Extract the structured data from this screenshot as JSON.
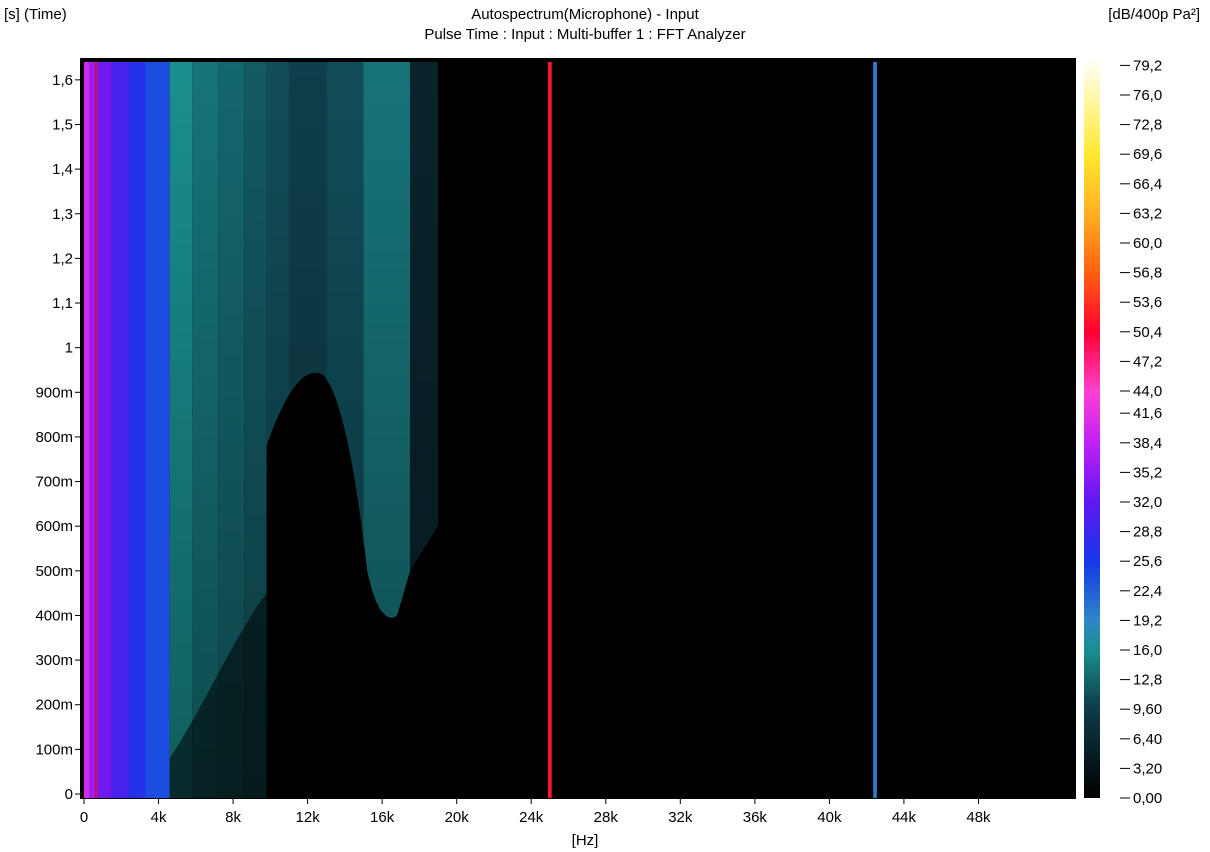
{
  "chart_data": {
    "type": "heatmap",
    "title": "Autospectrum(Microphone) - Input",
    "subtitle": "Pulse Time : Input : Multi-buffer 1 : FFT Analyzer",
    "xlabel": "[Hz]",
    "ylabel": "[s] (Time)",
    "colorbar_label": "[dB/400p Pa²]",
    "xlim": [
      0,
      52000
    ],
    "ylim": [
      0,
      1.64
    ],
    "x_ticks": [
      {
        "value": 0,
        "label": "0"
      },
      {
        "value": 4000,
        "label": "4k"
      },
      {
        "value": 8000,
        "label": "8k"
      },
      {
        "value": 12000,
        "label": "12k"
      },
      {
        "value": 16000,
        "label": "16k"
      },
      {
        "value": 20000,
        "label": "20k"
      },
      {
        "value": 24000,
        "label": "24k"
      },
      {
        "value": 28000,
        "label": "28k"
      },
      {
        "value": 32000,
        "label": "32k"
      },
      {
        "value": 36000,
        "label": "36k"
      },
      {
        "value": 40000,
        "label": "40k"
      },
      {
        "value": 44000,
        "label": "44k"
      },
      {
        "value": 48000,
        "label": "48k"
      }
    ],
    "y_ticks": [
      {
        "value": 0,
        "label": "0"
      },
      {
        "value": 0.1,
        "label": "100m"
      },
      {
        "value": 0.2,
        "label": "200m"
      },
      {
        "value": 0.3,
        "label": "300m"
      },
      {
        "value": 0.4,
        "label": "400m"
      },
      {
        "value": 0.5,
        "label": "500m"
      },
      {
        "value": 0.6,
        "label": "600m"
      },
      {
        "value": 0.7,
        "label": "700m"
      },
      {
        "value": 0.8,
        "label": "800m"
      },
      {
        "value": 0.9,
        "label": "900m"
      },
      {
        "value": 1.0,
        "label": "1"
      },
      {
        "value": 1.1,
        "label": "1,1"
      },
      {
        "value": 1.2,
        "label": "1,2"
      },
      {
        "value": 1.3,
        "label": "1,3"
      },
      {
        "value": 1.4,
        "label": "1,4"
      },
      {
        "value": 1.5,
        "label": "1,5"
      },
      {
        "value": 1.6,
        "label": "1,6"
      }
    ],
    "colorbar": {
      "range": [
        0,
        80
      ],
      "ticks": [
        "79,2",
        "76,0",
        "72,8",
        "69,6",
        "66,4",
        "63,2",
        "60,0",
        "56,8",
        "53,6",
        "50,4",
        "47,2",
        "44,0",
        "41,6",
        "38,4",
        "35,2",
        "32,0",
        "28,8",
        "25,6",
        "22,4",
        "19,2",
        "16,0",
        "12,8",
        "9,60",
        "6,40",
        "3,20",
        "0,00"
      ],
      "tick_values": [
        79.2,
        76.0,
        72.8,
        69.6,
        66.4,
        63.2,
        60.0,
        56.8,
        53.6,
        50.4,
        47.2,
        44.0,
        41.6,
        38.4,
        35.2,
        32.0,
        28.8,
        25.6,
        22.4,
        19.2,
        16.0,
        12.8,
        9.6,
        6.4,
        3.2,
        0.0
      ],
      "stops": [
        {
          "value": 0,
          "color": "#000000"
        },
        {
          "value": 9.6,
          "color": "#0e3a48"
        },
        {
          "value": 16,
          "color": "#1a8f8f"
        },
        {
          "value": 19.2,
          "color": "#2f86c8"
        },
        {
          "value": 25.6,
          "color": "#1538e8"
        },
        {
          "value": 32,
          "color": "#6018f0"
        },
        {
          "value": 38.4,
          "color": "#c020f8"
        },
        {
          "value": 44,
          "color": "#ff40d0"
        },
        {
          "value": 50.4,
          "color": "#ff0030"
        },
        {
          "value": 56.8,
          "color": "#ff6010"
        },
        {
          "value": 63.2,
          "color": "#ffb020"
        },
        {
          "value": 69.6,
          "color": "#ffe830"
        },
        {
          "value": 76,
          "color": "#fff8b0"
        },
        {
          "value": 80,
          "color": "#ffffff"
        }
      ]
    },
    "bands": [
      {
        "f0": 0,
        "f1": 300,
        "t_top": 1.64,
        "level": 40
      },
      {
        "f0": 300,
        "f1": 600,
        "t_top": 1.64,
        "level": 36
      },
      {
        "f0": 600,
        "f1": 700,
        "t_top": 1.64,
        "level": 50
      },
      {
        "f0": 700,
        "f1": 1500,
        "t_top": 1.64,
        "level": 33
      },
      {
        "f0": 1500,
        "f1": 2400,
        "t_top": 1.64,
        "level": 30
      },
      {
        "f0": 2400,
        "f1": 3300,
        "t_top": 1.64,
        "level": 27
      },
      {
        "f0": 3300,
        "f1": 4600,
        "t_top": 1.64,
        "level": 24
      },
      {
        "f0": 4600,
        "f1": 5800,
        "t_top": 1.64,
        "level": 16
      },
      {
        "f0": 5800,
        "f1": 7200,
        "t_top": 1.64,
        "level": 14
      },
      {
        "f0": 7200,
        "f1": 8600,
        "t_top": 1.64,
        "level": 13
      },
      {
        "f0": 8600,
        "f1": 9800,
        "t_top": 1.64,
        "level": 12
      },
      {
        "f0": 9800,
        "f1": 11000,
        "t_top": 1.64,
        "level": 11
      },
      {
        "f0": 11000,
        "f1": 13000,
        "t_top": 1.64,
        "level": 10
      },
      {
        "f0": 13000,
        "f1": 15000,
        "t_top": 1.64,
        "level": 11
      },
      {
        "f0": 15000,
        "f1": 17500,
        "t_top": 1.64,
        "level": 14
      },
      {
        "f0": 17500,
        "f1": 19000,
        "t_top": 1.64,
        "level": 6
      },
      {
        "f0": 24900,
        "f1": 25100,
        "t_top": 1.64,
        "level": 52
      },
      {
        "f0": 42350,
        "f1": 42550,
        "t_top": 1.64,
        "level": 20
      }
    ]
  }
}
